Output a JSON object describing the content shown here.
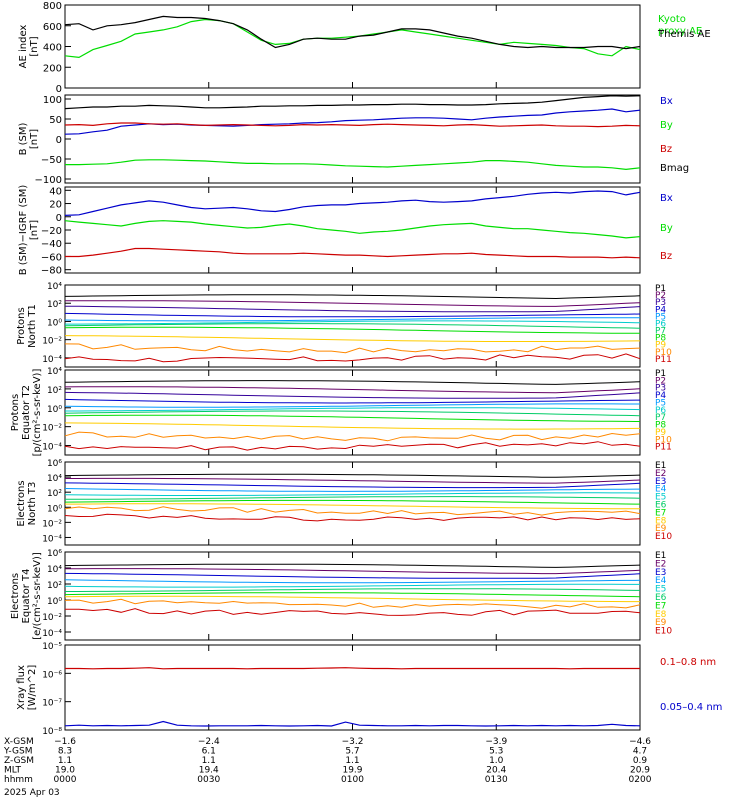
{
  "chart_data": [
    {
      "type": "line",
      "ylabel": "AE index\n[nT]",
      "ylim": [
        0,
        800
      ],
      "yticks": [
        "0",
        "200",
        "400",
        "600",
        "800"
      ],
      "series": [
        {
          "name": "Kyoto\nproxy AE",
          "color": "#00dd00",
          "values": [
            310,
            295,
            370,
            410,
            450,
            520,
            540,
            560,
            590,
            640,
            660,
            650,
            620,
            540,
            460,
            420,
            430,
            470,
            480,
            480,
            490,
            500,
            520,
            540,
            560,
            540,
            520,
            500,
            480,
            460,
            440,
            420,
            440,
            430,
            420,
            410,
            390,
            380,
            330,
            310,
            400,
            370
          ]
        },
        {
          "name": "Themis AE",
          "color": "#000000",
          "values": [
            610,
            620,
            560,
            600,
            610,
            630,
            660,
            690,
            680,
            680,
            670,
            650,
            620,
            560,
            470,
            390,
            420,
            470,
            480,
            470,
            470,
            500,
            510,
            540,
            570,
            570,
            560,
            530,
            500,
            480,
            450,
            420,
            400,
            390,
            400,
            390,
            390,
            390,
            400,
            400,
            380,
            400
          ]
        }
      ]
    },
    {
      "type": "line",
      "ylabel": "B (SM)\n[nT]",
      "ylim": [
        -110,
        110
      ],
      "yticks": [
        "−100",
        "−50",
        "0",
        "50",
        "100"
      ],
      "series": [
        {
          "name": "Bx",
          "color": "#0000cc",
          "values": [
            12,
            13,
            18,
            22,
            32,
            35,
            38,
            36,
            37,
            35,
            34,
            33,
            32,
            34,
            36,
            37,
            38,
            40,
            41,
            43,
            46,
            47,
            48,
            50,
            52,
            53,
            53,
            52,
            50,
            48,
            52,
            55,
            57,
            59,
            60,
            65,
            68,
            70,
            72,
            75,
            68,
            72
          ]
        },
        {
          "name": "By",
          "color": "#00dd00",
          "values": [
            -64,
            -64,
            -63,
            -62,
            -58,
            -53,
            -52,
            -52,
            -53,
            -54,
            -55,
            -57,
            -59,
            -61,
            -61,
            -62,
            -62,
            -62,
            -63,
            -65,
            -67,
            -68,
            -69,
            -70,
            -68,
            -66,
            -64,
            -62,
            -60,
            -58,
            -54,
            -54,
            -56,
            -58,
            -62,
            -66,
            -68,
            -70,
            -70,
            -72,
            -76,
            -72
          ]
        },
        {
          "name": "Bz",
          "color": "#cc0000",
          "values": [
            35,
            36,
            34,
            38,
            40,
            40,
            38,
            37,
            38,
            36,
            34,
            35,
            36,
            35,
            34,
            33,
            34,
            36,
            35,
            36,
            35,
            34,
            36,
            37,
            36,
            35,
            34,
            33,
            35,
            36,
            34,
            32,
            33,
            34,
            35,
            33,
            32,
            32,
            31,
            32,
            34,
            33
          ]
        },
        {
          "name": "Bmag",
          "color": "#000000",
          "values": [
            76,
            78,
            80,
            80,
            82,
            82,
            84,
            83,
            82,
            80,
            78,
            78,
            79,
            80,
            82,
            82,
            83,
            83,
            84,
            84,
            85,
            85,
            86,
            86,
            87,
            87,
            86,
            86,
            85,
            85,
            86,
            88,
            89,
            90,
            92,
            96,
            100,
            104,
            106,
            108,
            107,
            108
          ]
        }
      ]
    },
    {
      "type": "line",
      "ylabel": "B (SM)−IGRF (SM)\n[nT]",
      "ylim": [
        -85,
        45
      ],
      "yticks": [
        "−80",
        "−60",
        "−40",
        "−20",
        "0",
        "20",
        "40"
      ],
      "series": [
        {
          "name": "Bx",
          "color": "#0000cc",
          "values": [
            2,
            3,
            8,
            13,
            18,
            21,
            24,
            22,
            18,
            14,
            12,
            13,
            14,
            12,
            9,
            8,
            11,
            15,
            17,
            18,
            18,
            20,
            21,
            22,
            24,
            25,
            23,
            22,
            23,
            24,
            27,
            29,
            31,
            34,
            36,
            37,
            36,
            38,
            39,
            38,
            33,
            37
          ]
        },
        {
          "name": "By",
          "color": "#00dd00",
          "values": [
            -6,
            -8,
            -10,
            -12,
            -14,
            -10,
            -7,
            -6,
            -7,
            -8,
            -11,
            -13,
            -15,
            -17,
            -16,
            -13,
            -11,
            -14,
            -18,
            -20,
            -22,
            -25,
            -23,
            -22,
            -20,
            -17,
            -14,
            -12,
            -11,
            -10,
            -14,
            -16,
            -18,
            -18,
            -20,
            -22,
            -24,
            -25,
            -27,
            -29,
            -32,
            -30
          ]
        },
        {
          "name": "Bz",
          "color": "#cc0000",
          "values": [
            -60,
            -60,
            -58,
            -55,
            -52,
            -48,
            -48,
            -49,
            -50,
            -51,
            -52,
            -53,
            -55,
            -56,
            -56,
            -56,
            -56,
            -55,
            -56,
            -57,
            -58,
            -58,
            -59,
            -60,
            -59,
            -58,
            -57,
            -56,
            -56,
            -55,
            -57,
            -58,
            -59,
            -60,
            -60,
            -60,
            -61,
            -61,
            -61,
            -62,
            -61,
            -62
          ]
        }
      ]
    }
  ],
  "channels": {
    "protons_n": {
      "ylabel": "Protons\nNorth T1",
      "ylim": [
        -5,
        4
      ],
      "labels": [
        "P1",
        "P2",
        "P3",
        "P4",
        "P5",
        "P6",
        "P7",
        "P8",
        "P9",
        "P10",
        "P11"
      ],
      "colors": [
        "#000000",
        "#660066",
        "#330099",
        "#0000cc",
        "#0099ff",
        "#00cccc",
        "#00cc66",
        "#00dd00",
        "#ffcc00",
        "#ff8800",
        "#cc0000"
      ],
      "levels": [
        2.75,
        2.05,
        1.45,
        0.85,
        0.35,
        -0.05,
        -0.4,
        -0.85,
        -1.8,
        -2.8,
        -3.9
      ]
    },
    "protons_eq": {
      "ylabel": "Protons\nEquator T2\n[p/(cm²-s-sr-keV)]",
      "ylim": [
        -5,
        4
      ],
      "labels": [
        "P1",
        "P2",
        "P3",
        "P4",
        "P5",
        "P6",
        "P7",
        "P8",
        "P9",
        "P10",
        "P11"
      ],
      "colors": [
        "#000000",
        "#660066",
        "#330099",
        "#0000cc",
        "#0099ff",
        "#00cccc",
        "#00cc66",
        "#00dd00",
        "#ffcc00",
        "#ff8800",
        "#cc0000"
      ],
      "levels": [
        2.7,
        2.0,
        1.4,
        0.85,
        0.35,
        -0.1,
        -0.5,
        -1.0,
        -1.85,
        -2.85,
        -3.9
      ]
    },
    "electrons_n": {
      "ylabel": "Electrons\nNorth T3",
      "ylim": [
        -5,
        6
      ],
      "labels": [
        "E1",
        "E2",
        "E3",
        "E4",
        "E5",
        "E6",
        "E7",
        "E8",
        "E9",
        "E10"
      ],
      "colors": [
        "#000000",
        "#660066",
        "#0000cc",
        "#0099ff",
        "#00cccc",
        "#00cc66",
        "#00dd00",
        "#ffcc00",
        "#ff8800",
        "#cc0000"
      ],
      "levels": [
        4.2,
        3.6,
        3.0,
        2.45,
        1.85,
        1.3,
        0.75,
        0.25,
        -0.35,
        -1.2
      ]
    },
    "electrons_eq": {
      "ylabel": "Electrons\nEquator T4\n[e/(cm²-s-sr-keV)]",
      "ylim": [
        -5,
        6
      ],
      "labels": [
        "E1",
        "E2",
        "E3",
        "E4",
        "E5",
        "E6",
        "E7",
        "E8",
        "E9",
        "E10"
      ],
      "colors": [
        "#000000",
        "#660066",
        "#0000cc",
        "#0099ff",
        "#00cccc",
        "#00cc66",
        "#00dd00",
        "#ffcc00",
        "#ff8800",
        "#cc0000"
      ],
      "levels": [
        4.3,
        3.7,
        3.1,
        2.5,
        1.9,
        1.3,
        0.75,
        0.25,
        -0.35,
        -1.3
      ]
    }
  },
  "xray": {
    "ylabel": "Xray flux\n[W/m^2]",
    "ylim": [
      -8,
      -5
    ],
    "yticks": [
      "10⁻⁸",
      "10⁻⁷",
      "10⁻⁶",
      "10⁻⁵"
    ],
    "series": [
      {
        "name": "0.1–0.8 nm",
        "color": "#cc0000",
        "log_values": [
          -5.83,
          -5.83,
          -5.84,
          -5.83,
          -5.83,
          -5.82,
          -5.8,
          -5.84,
          -5.83,
          -5.83,
          -5.83,
          -5.83,
          -5.83,
          -5.84,
          -5.83,
          -5.83,
          -5.83,
          -5.83,
          -5.82,
          -5.81,
          -5.8,
          -5.82,
          -5.83,
          -5.83,
          -5.84,
          -5.83,
          -5.83,
          -5.83,
          -5.83,
          -5.83,
          -5.83,
          -5.83,
          -5.83,
          -5.83,
          -5.83,
          -5.83,
          -5.84,
          -5.83,
          -5.83,
          -5.83,
          -5.83,
          -5.83
        ]
      },
      {
        "name": "0.05–0.4 nm",
        "color": "#0000cc",
        "log_values": [
          -7.85,
          -7.83,
          -7.85,
          -7.84,
          -7.85,
          -7.84,
          -7.83,
          -7.7,
          -7.83,
          -7.85,
          -7.86,
          -7.85,
          -7.85,
          -7.85,
          -7.84,
          -7.85,
          -7.86,
          -7.85,
          -7.84,
          -7.86,
          -7.72,
          -7.83,
          -7.84,
          -7.85,
          -7.85,
          -7.84,
          -7.85,
          -7.84,
          -7.84,
          -7.85,
          -7.86,
          -7.85,
          -7.84,
          -7.85,
          -7.84,
          -7.85,
          -7.84,
          -7.85,
          -7.84,
          -7.8,
          -7.84,
          -7.85
        ]
      }
    ]
  },
  "orbit": {
    "row_labels": [
      "X-GSM",
      "Y-GSM",
      "Z-GSM",
      "MLT",
      "hhmm"
    ],
    "columns": [
      [
        "−1.6",
        "8.3",
        "1.1",
        "19.0",
        "0000"
      ],
      [
        "−2.4",
        "6.1",
        "1.1",
        "19.4",
        "0030"
      ],
      [
        "−3.2",
        "5.7",
        "1.1",
        "19.9",
        "0100"
      ],
      [
        "−3.9",
        "5.3",
        "1.0",
        "20.4",
        "0130"
      ],
      [
        "−4.6",
        "4.7",
        "0.9",
        "20.9",
        "0200"
      ]
    ],
    "date": "2025 Apr 03"
  }
}
